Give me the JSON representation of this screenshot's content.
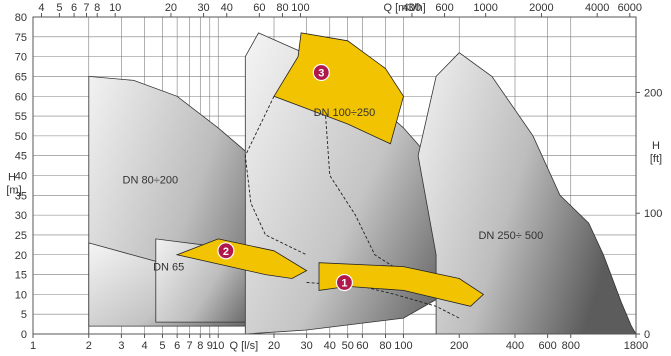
{
  "chart_data": {
    "type": "area",
    "axes": {
      "x_bottom": {
        "unit_label": "Q [l/s]",
        "scale": "log",
        "range": [
          1,
          1800
        ],
        "ticks": [
          "1",
          "2",
          "3",
          "4",
          "5",
          "6",
          "7",
          "8",
          "9",
          "10",
          "20",
          "30",
          "40",
          "50",
          "60",
          "80",
          "100",
          "200",
          "400",
          "600",
          "800",
          "1800"
        ],
        "tick_values": [
          1,
          2,
          3,
          4,
          5,
          6,
          7,
          8,
          9,
          10,
          20,
          30,
          40,
          50,
          60,
          80,
          100,
          200,
          400,
          600,
          800,
          1800
        ]
      },
      "x_top": {
        "unit_label": "Q [m3/h]",
        "scale": "log",
        "ticks": [
          "4",
          "5",
          "6",
          "7",
          "8",
          "10",
          "20",
          "30",
          "40",
          "60",
          "80",
          "100",
          "400",
          "600",
          "1000",
          "2000",
          "4000",
          "6000"
        ],
        "tick_values": [
          4,
          5,
          6,
          7,
          8,
          10,
          20,
          30,
          40,
          60,
          80,
          100,
          400,
          600,
          1000,
          2000,
          4000,
          6000
        ]
      },
      "y_left": {
        "label": "H",
        "unit": "[m]",
        "scale": "linear",
        "range": [
          0,
          80
        ],
        "ticks": [
          "0",
          "5",
          "10",
          "15",
          "20",
          "25",
          "30",
          "35",
          "40",
          "45",
          "50",
          "55",
          "60",
          "65",
          "70",
          "75",
          "80"
        ]
      },
      "y_right": {
        "label": "H",
        "unit": "[ft]",
        "ticks": [
          "0",
          "100",
          "200"
        ],
        "tick_values": [
          0,
          100,
          200
        ]
      }
    },
    "grid": true,
    "regions": [
      {
        "label": "DN 80÷200",
        "fill": "grey-gradient",
        "points": [
          [
            2,
            0
          ],
          [
            2,
            65
          ],
          [
            3.5,
            64
          ],
          [
            6,
            60
          ],
          [
            10,
            52
          ],
          [
            20,
            40
          ],
          [
            30,
            28
          ],
          [
            35,
            20
          ],
          [
            36,
            10
          ],
          [
            30,
            3
          ],
          [
            2,
            3
          ]
        ]
      },
      {
        "label": "",
        "fill": "grey-gradient",
        "points": [
          [
            2,
            2
          ],
          [
            2,
            23
          ],
          [
            10,
            14
          ],
          [
            18,
            8
          ],
          [
            25,
            4
          ],
          [
            28,
            2
          ]
        ]
      },
      {
        "label": "DN 65",
        "fill": "grey-gradient",
        "points": [
          [
            4.6,
            12
          ],
          [
            4.6,
            24
          ],
          [
            10,
            22
          ],
          [
            20,
            16
          ],
          [
            24,
            6
          ],
          [
            18,
            3
          ],
          [
            4.6,
            3
          ]
        ]
      },
      {
        "label": "DN 100÷250",
        "fill": "grey-gradient",
        "points": [
          [
            14,
            0
          ],
          [
            14,
            70
          ],
          [
            16.5,
            76
          ],
          [
            45,
            67
          ],
          [
            80,
            56
          ],
          [
            100,
            52
          ],
          [
            130,
            46
          ],
          [
            250,
            30
          ],
          [
            270,
            23
          ],
          [
            200,
            12
          ],
          [
            100,
            4
          ],
          [
            30,
            1
          ]
        ]
      },
      {
        "label": "DN 250÷500",
        "fill": "grey-gradient",
        "points": [
          [
            150,
            0
          ],
          [
            150,
            20
          ],
          [
            120,
            45
          ],
          [
            150,
            65
          ],
          [
            200,
            71
          ],
          [
            300,
            65
          ],
          [
            500,
            50
          ],
          [
            700,
            35
          ],
          [
            1000,
            28
          ],
          [
            1200,
            20
          ],
          [
            1500,
            8
          ],
          [
            1700,
            2
          ],
          [
            1800,
            0
          ]
        ]
      }
    ],
    "highlights": [
      {
        "label": "1",
        "color": "#f2c300",
        "points": [
          [
            35,
            11
          ],
          [
            35,
            18
          ],
          [
            100,
            17
          ],
          [
            200,
            14
          ],
          [
            270,
            10
          ],
          [
            230,
            7
          ],
          [
            100,
            11
          ],
          [
            50,
            12
          ]
        ],
        "badge": [
          48,
          13
        ]
      },
      {
        "label": "2",
        "color": "#f2c300",
        "points": [
          [
            6,
            20
          ],
          [
            10,
            24
          ],
          [
            20,
            21
          ],
          [
            30,
            16
          ],
          [
            25,
            14
          ],
          [
            18,
            15
          ],
          [
            6,
            20
          ]
        ],
        "badge": [
          11,
          21
        ]
      },
      {
        "label": "3",
        "color": "#f2c300",
        "points": [
          [
            20,
            60
          ],
          [
            27,
            70
          ],
          [
            28,
            76
          ],
          [
            50,
            74
          ],
          [
            80,
            67
          ],
          [
            100,
            60
          ],
          [
            85,
            48
          ],
          [
            50,
            53
          ],
          [
            20,
            60
          ]
        ],
        "badge": [
          36,
          66
        ]
      }
    ],
    "dashed_curves": [
      [
        [
          20,
          60
        ],
        [
          14,
          45
        ],
        [
          15,
          33
        ],
        [
          18,
          25
        ],
        [
          30,
          20
        ]
      ],
      [
        [
          38,
          55
        ],
        [
          40,
          40
        ],
        [
          55,
          30
        ],
        [
          70,
          20
        ],
        [
          130,
          12
        ]
      ],
      [
        [
          30,
          13
        ],
        [
          60,
          12
        ],
        [
          90,
          10
        ],
        [
          150,
          7
        ],
        [
          200,
          4
        ]
      ]
    ],
    "region_labels": [
      "DN 80÷200",
      "DN 65",
      "DN 100÷250",
      "DN 250÷ 500"
    ]
  },
  "colors": {
    "highlight": "#f2c300",
    "badge": "#b0174b",
    "grid": "#7d7d7d",
    "region_dark": "#6a6a6a",
    "region_light": "#e8e8e8"
  }
}
